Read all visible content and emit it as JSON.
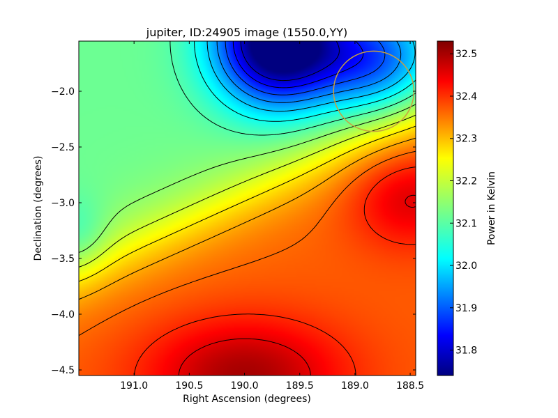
{
  "chart_data": {
    "type": "heatmap",
    "title": "jupiter, ID:24905 image (1550.0,YY)",
    "xlabel": "Right Ascension (degrees)",
    "ylabel": "Declination (degrees)",
    "xlim": [
      191.5,
      188.45
    ],
    "ylim": [
      -4.55,
      -1.55
    ],
    "x_ticks": [
      {
        "value": 191.0,
        "label": "191.0"
      },
      {
        "value": 190.5,
        "label": "190.5"
      },
      {
        "value": 190.0,
        "label": "190.0"
      },
      {
        "value": 189.5,
        "label": "189.5"
      },
      {
        "value": 189.0,
        "label": "189.0"
      },
      {
        "value": 188.5,
        "label": "188.5"
      }
    ],
    "y_ticks": [
      {
        "value": -2.0,
        "label": "−2.0"
      },
      {
        "value": -2.5,
        "label": "−2.5"
      },
      {
        "value": -3.0,
        "label": "−3.0"
      },
      {
        "value": -3.5,
        "label": "−3.5"
      },
      {
        "value": -4.0,
        "label": "−4.0"
      },
      {
        "value": -4.5,
        "label": "−4.5"
      }
    ],
    "colorbar": {
      "label": "Power in Kelvin",
      "range": [
        31.74,
        32.53
      ],
      "colormap": "jet",
      "ticks": [
        {
          "value": 31.8,
          "label": "31.8"
        },
        {
          "value": 31.9,
          "label": "31.9"
        },
        {
          "value": 32.0,
          "label": "32.0"
        },
        {
          "value": 32.1,
          "label": "32.1"
        },
        {
          "value": 32.2,
          "label": "32.2"
        },
        {
          "value": 32.3,
          "label": "32.3"
        },
        {
          "value": 32.4,
          "label": "32.4"
        },
        {
          "value": 32.5,
          "label": "32.5"
        }
      ]
    },
    "contours": "black",
    "marker": {
      "shape": "circle",
      "color": "#c8a040",
      "center": [
        188.83,
        -2.0
      ],
      "radius_deg": 0.36
    }
  }
}
